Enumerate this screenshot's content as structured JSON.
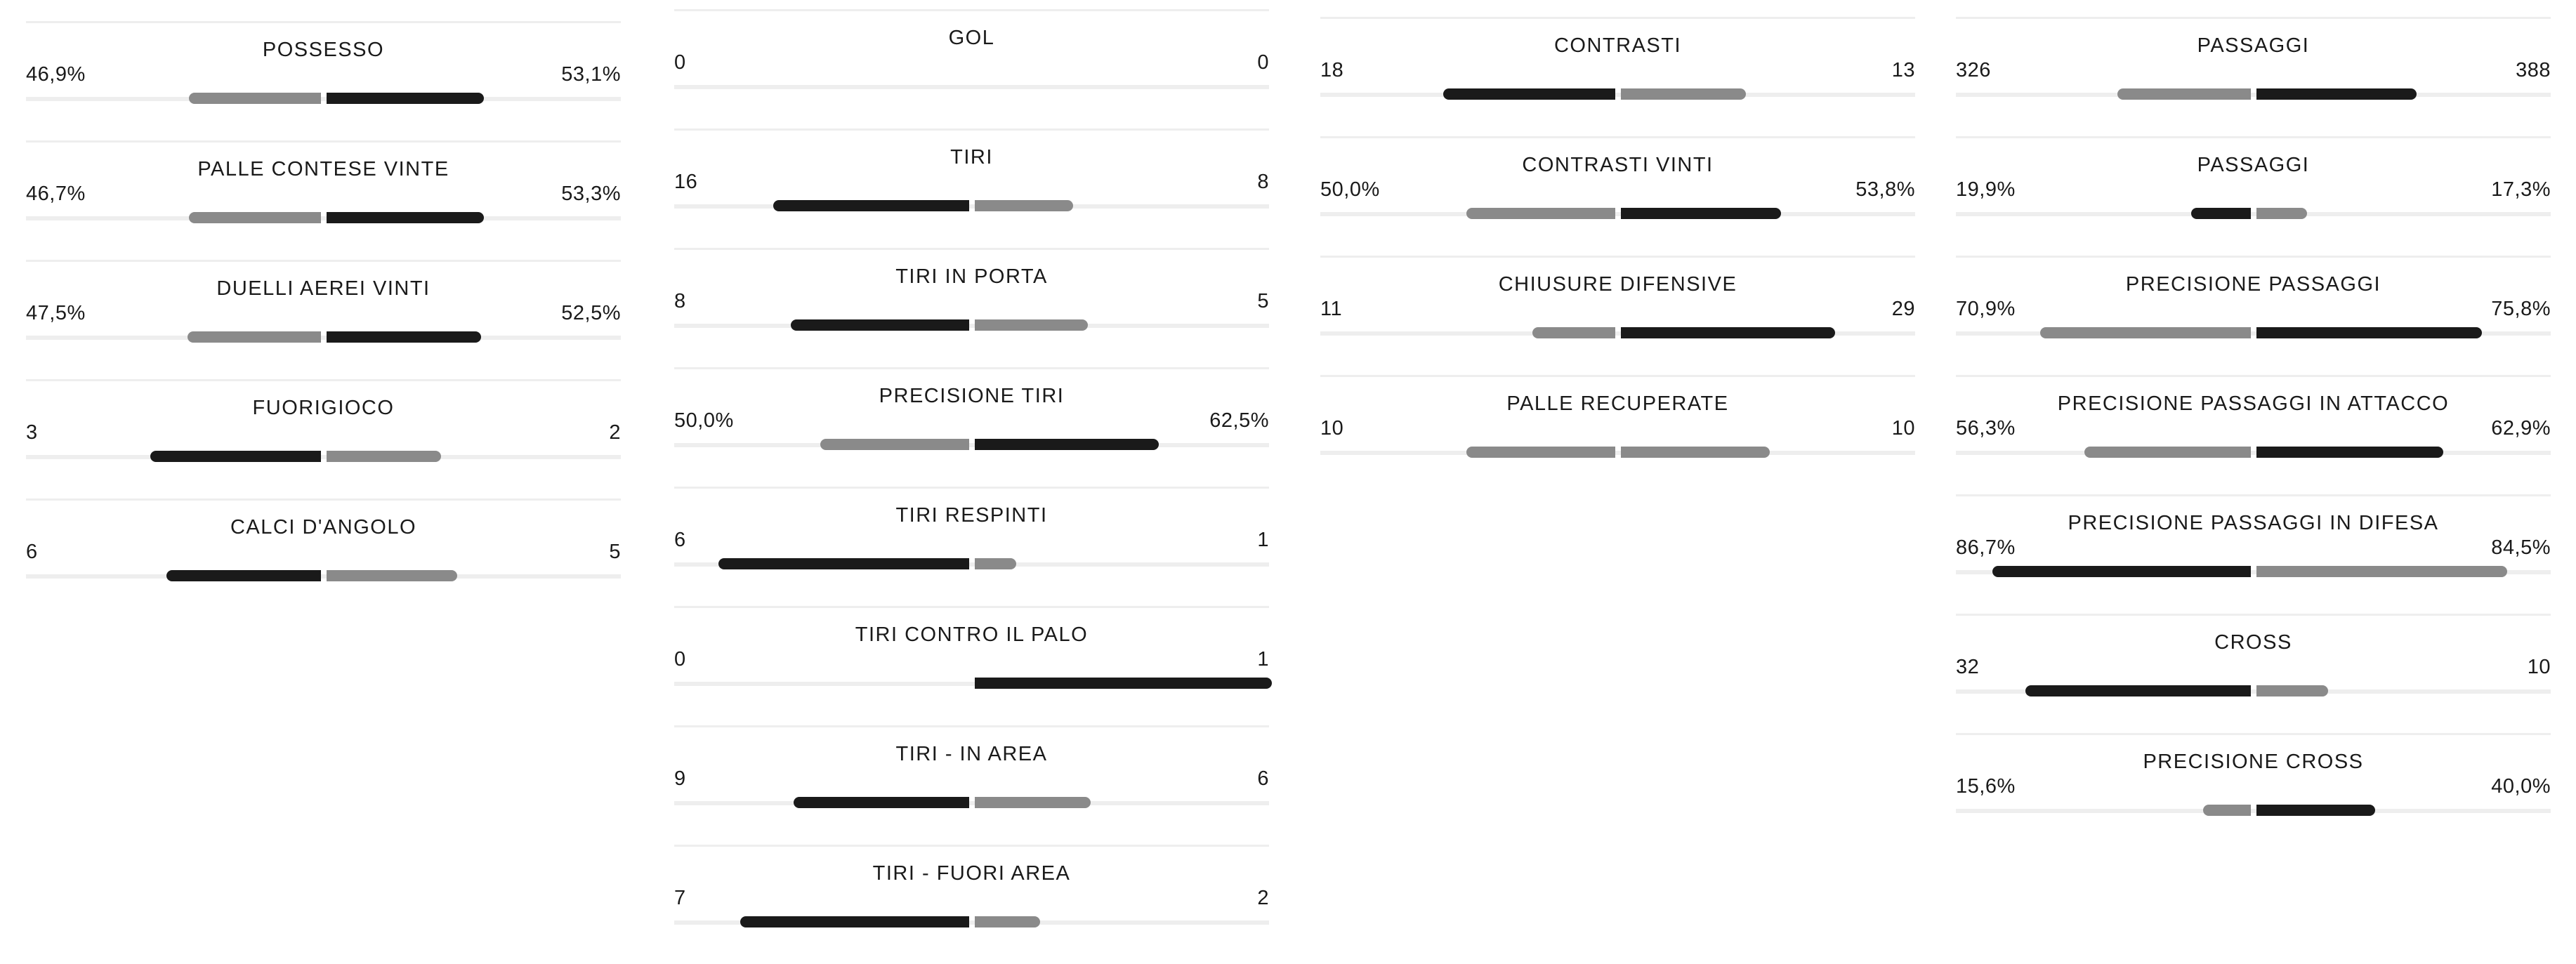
{
  "columns": [
    {
      "stats": [
        {
          "label": "POSSESSO",
          "left": "46,9%",
          "right": "53,1%",
          "lw": 0.445,
          "rw": 0.53,
          "lc": "light",
          "rc": "dark"
        },
        {
          "label": "PALLE CONTESE VINTE",
          "left": "46,7%",
          "right": "53,3%",
          "lw": 0.445,
          "rw": 0.53,
          "lc": "light",
          "rc": "dark"
        },
        {
          "label": "DUELLI AEREI VINTI",
          "left": "47,5%",
          "right": "52,5%",
          "lw": 0.45,
          "rw": 0.52,
          "lc": "light",
          "rc": "dark"
        },
        {
          "label": "FUORIGIOCO",
          "left": "3",
          "right": "2",
          "lw": 0.575,
          "rw": 0.385,
          "lc": "dark",
          "rc": "light"
        },
        {
          "label": "CALCI D'ANGOLO",
          "left": "6",
          "right": "5",
          "lw": 0.52,
          "rw": 0.44,
          "lc": "dark",
          "rc": "light"
        }
      ]
    },
    {
      "stats": [
        {
          "label": "GOL",
          "left": "0",
          "right": "0",
          "lw": 0,
          "rw": 0,
          "lc": "dark",
          "rc": "light"
        },
        {
          "label": "TIRI",
          "left": "16",
          "right": "8",
          "lw": 0.66,
          "rw": 0.33,
          "lc": "dark",
          "rc": "light"
        },
        {
          "label": "TIRI IN PORTA",
          "left": "8",
          "right": "5",
          "lw": 0.6,
          "rw": 0.38,
          "lc": "dark",
          "rc": "light"
        },
        {
          "label": "PRECISIONE TIRI",
          "left": "50,0%",
          "right": "62,5%",
          "lw": 0.5,
          "rw": 0.62,
          "lc": "light",
          "rc": "dark"
        },
        {
          "label": "TIRI RESPINTI",
          "left": "6",
          "right": "1",
          "lw": 0.845,
          "rw": 0.14,
          "lc": "dark",
          "rc": "light"
        },
        {
          "label": "TIRI CONTRO IL PALO",
          "left": "0",
          "right": "1",
          "lw": 0,
          "rw": 1.0,
          "lc": "dark",
          "rc": "dark"
        },
        {
          "label": "TIRI - IN AREA",
          "left": "9",
          "right": "6",
          "lw": 0.59,
          "rw": 0.39,
          "lc": "dark",
          "rc": "light"
        },
        {
          "label": "TIRI - FUORI AREA",
          "left": "7",
          "right": "2",
          "lw": 0.77,
          "rw": 0.22,
          "lc": "dark",
          "rc": "light"
        }
      ]
    },
    {
      "stats": [
        {
          "label": "CONTRASTI",
          "left": "18",
          "right": "13",
          "lw": 0.58,
          "rw": 0.42,
          "lc": "dark",
          "rc": "light"
        },
        {
          "label": "CONTRASTI VINTI",
          "left": "50,0%",
          "right": "53,8%",
          "lw": 0.5,
          "rw": 0.54,
          "lc": "light",
          "rc": "dark"
        },
        {
          "label": "CHIUSURE DIFENSIVE",
          "left": "11",
          "right": "29",
          "lw": 0.28,
          "rw": 0.72,
          "lc": "light",
          "rc": "dark"
        },
        {
          "label": "PALLE RECUPERATE",
          "left": "10",
          "right": "10",
          "lw": 0.5,
          "rw": 0.5,
          "lc": "light",
          "rc": "light"
        }
      ]
    },
    {
      "stats": [
        {
          "label": "PASSAGGI",
          "left": "326",
          "right": "388",
          "lw": 0.45,
          "rw": 0.54,
          "lc": "light",
          "rc": "dark"
        },
        {
          "label": "PASSAGGI",
          "left": "19,9%",
          "right": "17,3%",
          "lw": 0.2,
          "rw": 0.17,
          "lc": "dark",
          "rc": "light"
        },
        {
          "label": "PRECISIONE PASSAGGI",
          "left": "70,9%",
          "right": "75,8%",
          "lw": 0.71,
          "rw": 0.76,
          "lc": "light",
          "rc": "dark"
        },
        {
          "label": "PRECISIONE PASSAGGI IN ATTACCO",
          "left": "56,3%",
          "right": "62,9%",
          "lw": 0.56,
          "rw": 0.63,
          "lc": "light",
          "rc": "dark"
        },
        {
          "label": "PRECISIONE PASSAGGI IN DIFESA",
          "left": "86,7%",
          "right": "84,5%",
          "lw": 0.87,
          "rw": 0.845,
          "lc": "dark",
          "rc": "light"
        },
        {
          "label": "CROSS",
          "left": "32",
          "right": "10",
          "lw": 0.76,
          "rw": 0.24,
          "lc": "dark",
          "rc": "light"
        },
        {
          "label": "PRECISIONE CROSS",
          "left": "15,6%",
          "right": "40,0%",
          "lw": 0.16,
          "rw": 0.4,
          "lc": "light",
          "rc": "dark"
        }
      ]
    }
  ]
}
